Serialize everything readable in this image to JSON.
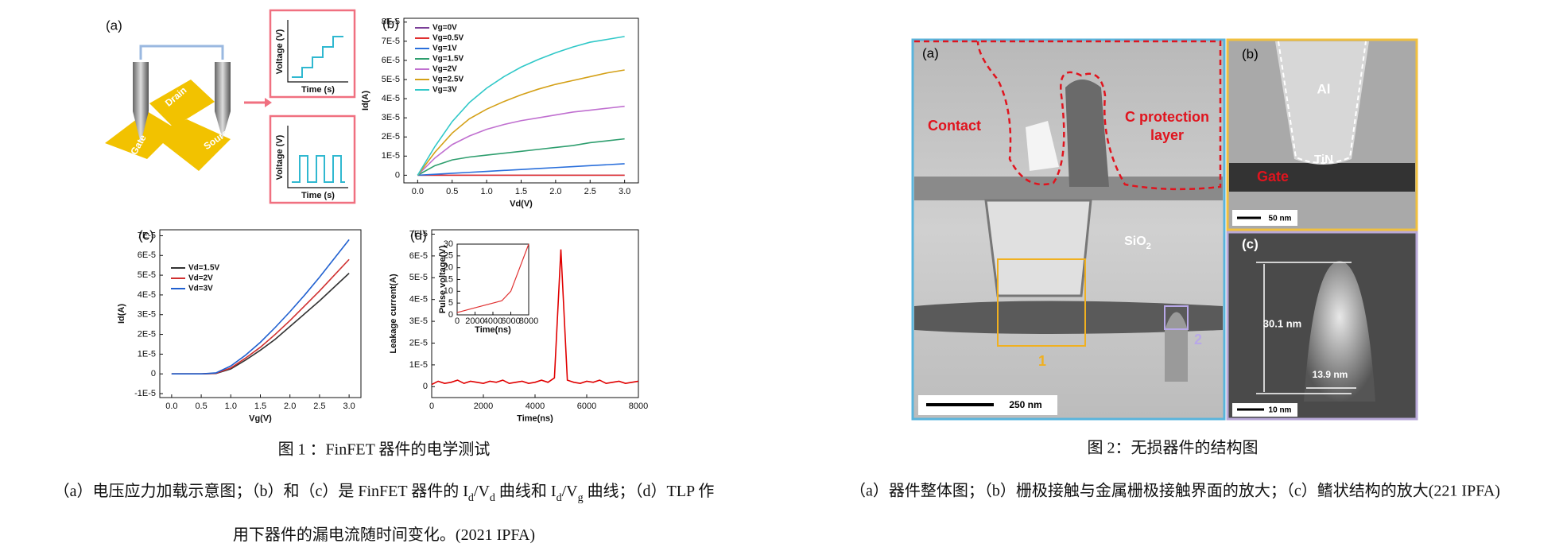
{
  "figure1": {
    "panel_a": {
      "label": "(a)",
      "drain": "Drain",
      "gate": "Gate",
      "source": "Source",
      "plots": [
        {
          "ylabel": "Voltage (V)",
          "xlabel": "Time (s)"
        },
        {
          "ylabel": "Voltage (V)",
          "xlabel": "Time (s)"
        }
      ]
    },
    "charts": [
      {
        "type": "line",
        "label": "(b)",
        "xlabel": "Vd(V)",
        "ylabel": "Id(A)",
        "legend": "upper left",
        "xlim": [
          -0.2,
          3.2
        ],
        "ylim": [
          -4e-06,
          8.2e-05
        ],
        "xticks": [
          {
            "value": 0,
            "label": "0.0"
          },
          0.5,
          {
            "value": 1,
            "label": "1.0"
          },
          1.5,
          {
            "value": 2,
            "label": "2.0"
          },
          2.5,
          {
            "value": 3,
            "label": "3.0"
          }
        ],
        "yticks": [
          0,
          {
            "value": 1e-05,
            "label": "1E-5"
          },
          {
            "value": 2e-05,
            "label": "2E-5"
          },
          {
            "value": 3e-05,
            "label": "3E-5"
          },
          {
            "value": 4e-05,
            "label": "4E-5"
          },
          {
            "value": 5e-05,
            "label": "5E-5"
          },
          {
            "value": 6e-05,
            "label": "6E-5"
          },
          {
            "value": 7e-05,
            "label": "7E-5"
          },
          {
            "value": 8e-05,
            "label": "8E-5"
          }
        ],
        "x": [
          0,
          0.25,
          0.5,
          0.75,
          1,
          1.25,
          1.5,
          1.75,
          2,
          2.25,
          2.5,
          2.75,
          3
        ],
        "series": [
          {
            "name": "Vg=0V",
            "color": "#7b3f98",
            "values": [
              0,
              0,
              0,
              0,
              0,
              0,
              0,
              0,
              0,
              0,
              0,
              0,
              0
            ]
          },
          {
            "name": "Vg=0.5V",
            "color": "#e03030",
            "values": [
              0,
              0,
              0,
              0,
              0,
              0,
              0,
              0,
              0,
              0,
              0,
              0,
              0
            ]
          },
          {
            "name": "Vg=1V",
            "color": "#2a6fdb",
            "values": [
              0,
              5e-07,
              1e-06,
              1.5e-06,
              2e-06,
              2.5e-06,
              3e-06,
              3.5e-06,
              4e-06,
              4.5e-06,
              5e-06,
              5.5e-06,
              6e-06
            ]
          },
          {
            "name": "Vg=1.5V",
            "color": "#2e9e6e",
            "values": [
              0,
              5e-06,
              8e-06,
              9.5e-06,
              1.05e-05,
              1.15e-05,
              1.25e-05,
              1.35e-05,
              1.45e-05,
              1.55e-05,
              1.7e-05,
              1.8e-05,
              1.9e-05
            ]
          },
          {
            "name": "Vg=2V",
            "color": "#c070d0",
            "values": [
              0,
              9e-06,
              1.6e-05,
              2.05e-05,
              2.4e-05,
              2.65e-05,
              2.85e-05,
              3e-05,
              3.15e-05,
              3.3e-05,
              3.4e-05,
              3.5e-05,
              3.6e-05
            ]
          },
          {
            "name": "Vg=2.5V",
            "color": "#d4a017",
            "values": [
              0,
              1.2e-05,
              2.2e-05,
              2.95e-05,
              3.45e-05,
              3.85e-05,
              4.2e-05,
              4.5e-05,
              4.75e-05,
              4.95e-05,
              5.15e-05,
              5.35e-05,
              5.5e-05
            ]
          },
          {
            "name": "Vg=3V",
            "color": "#30c8c8",
            "values": [
              0,
              1.5e-05,
              2.8e-05,
              3.8e-05,
              4.55e-05,
              5.15e-05,
              5.65e-05,
              6.05e-05,
              6.4e-05,
              6.7e-05,
              6.95e-05,
              7.1e-05,
              7.25e-05
            ]
          }
        ]
      },
      {
        "type": "line",
        "label": "(c)",
        "xlabel": "Vg(V)",
        "ylabel": "Id(A)",
        "legend": "upper left",
        "xlim": [
          -0.2,
          3.2
        ],
        "ylim": [
          -1.2e-05,
          7.3e-05
        ],
        "xticks": [
          {
            "value": 0,
            "label": "0.0"
          },
          0.5,
          {
            "value": 1,
            "label": "1.0"
          },
          1.5,
          {
            "value": 2,
            "label": "2.0"
          },
          2.5,
          {
            "value": 3,
            "label": "3.0"
          }
        ],
        "yticks": [
          {
            "value": -1e-05,
            "label": "-1E-5"
          },
          0,
          {
            "value": 1e-05,
            "label": "1E-5"
          },
          {
            "value": 2e-05,
            "label": "2E-5"
          },
          {
            "value": 3e-05,
            "label": "3E-5"
          },
          {
            "value": 4e-05,
            "label": "4E-5"
          },
          {
            "value": 5e-05,
            "label": "5E-5"
          },
          {
            "value": 6e-05,
            "label": "6E-5"
          },
          {
            "value": 7e-05,
            "label": "7E-5"
          }
        ],
        "x": [
          0,
          0.25,
          0.5,
          0.75,
          1,
          1.25,
          1.5,
          1.75,
          2,
          2.25,
          2.5,
          2.75,
          3
        ],
        "series": [
          {
            "name": "Vd=1.5V",
            "color": "#333333",
            "values": [
              0,
              0,
              0,
              2e-07,
              2.5e-06,
              7e-06,
              1.2e-05,
              1.75e-05,
              2.4e-05,
              3.05e-05,
              3.7e-05,
              4.4e-05,
              5.1e-05
            ]
          },
          {
            "name": "Vd=2V",
            "color": "#d03030",
            "values": [
              0,
              0,
              0,
              3e-07,
              3e-06,
              8e-06,
              1.35e-05,
              2e-05,
              2.7e-05,
              3.45e-05,
              4.2e-05,
              5e-05,
              5.8e-05
            ]
          },
          {
            "name": "Vd=3V",
            "color": "#2060d0",
            "values": [
              0,
              0,
              0,
              5e-07,
              4e-06,
              9.5e-06,
              1.6e-05,
              2.35e-05,
              3.15e-05,
              4e-05,
              4.9e-05,
              5.85e-05,
              6.8e-05
            ]
          }
        ]
      },
      {
        "type": "line",
        "label": "(d)",
        "xlabel": "Time(ns)",
        "ylabel": "Leakage current(A)",
        "xlim": [
          0,
          8000
        ],
        "ylim": [
          -5e-06,
          7.2e-05
        ],
        "xticks": [
          0,
          2000,
          4000,
          6000,
          8000
        ],
        "yticks": [
          0,
          {
            "value": 1e-05,
            "label": "1E-5"
          },
          {
            "value": 2e-05,
            "label": "2E-5"
          },
          {
            "value": 3e-05,
            "label": "3E-5"
          },
          {
            "value": 4e-05,
            "label": "4E-5"
          },
          {
            "value": 5e-05,
            "label": "5E-5"
          },
          {
            "value": 6e-05,
            "label": "6E-5"
          },
          {
            "value": 7e-05,
            "label": "7E-5"
          }
        ],
        "x": [
          0,
          250,
          500,
          750,
          1000,
          1250,
          1500,
          1750,
          2000,
          2250,
          2500,
          2750,
          3000,
          3250,
          3500,
          3750,
          4000,
          4250,
          4500,
          4750,
          5000,
          5250,
          5500,
          5750,
          6000,
          6250,
          6500,
          6750,
          7000,
          7250,
          7500,
          7750,
          8000
        ],
        "series": [
          {
            "color": "#e00000",
            "values": [
              1e-06,
              2.5e-06,
              1.5e-06,
              2e-06,
              3e-06,
              1.5e-06,
              2.5e-06,
              2e-06,
              1.5e-06,
              2.5e-06,
              2e-06,
              3e-06,
              1.5e-06,
              2e-06,
              2.5e-06,
              1.5e-06,
              2e-06,
              3e-06,
              2e-06,
              4e-06,
              6.3e-05,
              3e-06,
              2e-06,
              1.5e-06,
              2.5e-06,
              2e-06,
              3e-06,
              1.5e-06,
              2e-06,
              2.5e-06,
              1.5e-06,
              2e-06,
              2.5e-06
            ]
          }
        ],
        "inset": {
          "type": "line",
          "xlabel": "Time(ns)",
          "ylabel": "Pulse voltage(V)",
          "xlim": [
            0,
            8000
          ],
          "ylim": [
            0,
            30
          ],
          "xticks": [
            0,
            2000,
            4000,
            6000,
            8000
          ],
          "yticks": [
            0,
            5,
            10,
            15,
            20,
            25,
            30
          ],
          "x": [
            0,
            2000,
            4000,
            5000,
            6000,
            7000,
            8000
          ],
          "series": [
            {
              "color": "#e03030",
              "values": [
                1,
                3,
                5,
                6,
                10,
                20,
                30
              ]
            }
          ]
        }
      }
    ],
    "caption": "图 1 ：FinFET 器件的电学测试",
    "description": [
      [
        {
          "text": "（a）电压应力加载示意图；（b）和（c）是 FinFET 器件的 I"
        },
        {
          "sub": "d"
        },
        {
          "text": "/V"
        },
        {
          "sub": "d"
        },
        {
          "text": " 曲线和 I"
        },
        {
          "sub": "d"
        },
        {
          "text": "/V"
        },
        {
          "sub": "g"
        },
        {
          "text": " 曲线；（d）TLP 作"
        }
      ],
      [
        {
          "text": "用下器件的漏电流随时间变化。(2021 IPFA)"
        }
      ]
    ]
  },
  "figure2": {
    "panel_a": {
      "label": "(a)",
      "contact": "Contact",
      "protection": [
        "C protection",
        "layer"
      ],
      "oxide": [
        {
          "text": "SiO"
        },
        {
          "sub": "2"
        }
      ],
      "box1": "1",
      "box2": "2",
      "scale": "250 nm"
    },
    "panel_b": {
      "label": "(b)",
      "metal": "Al",
      "liner": "TiN",
      "gate": "Gate",
      "scale": "50 nm"
    },
    "panel_c": {
      "label": "(c)",
      "height": "30.1 nm",
      "width": "13.9 nm",
      "scale": "10 nm"
    },
    "caption": "图 2：无损器件的结构图",
    "description": "（a）器件整体图；（b）栅极接触与金属栅极接触界面的放大；（c）鳍状结构的放大(221 IPFA)"
  }
}
